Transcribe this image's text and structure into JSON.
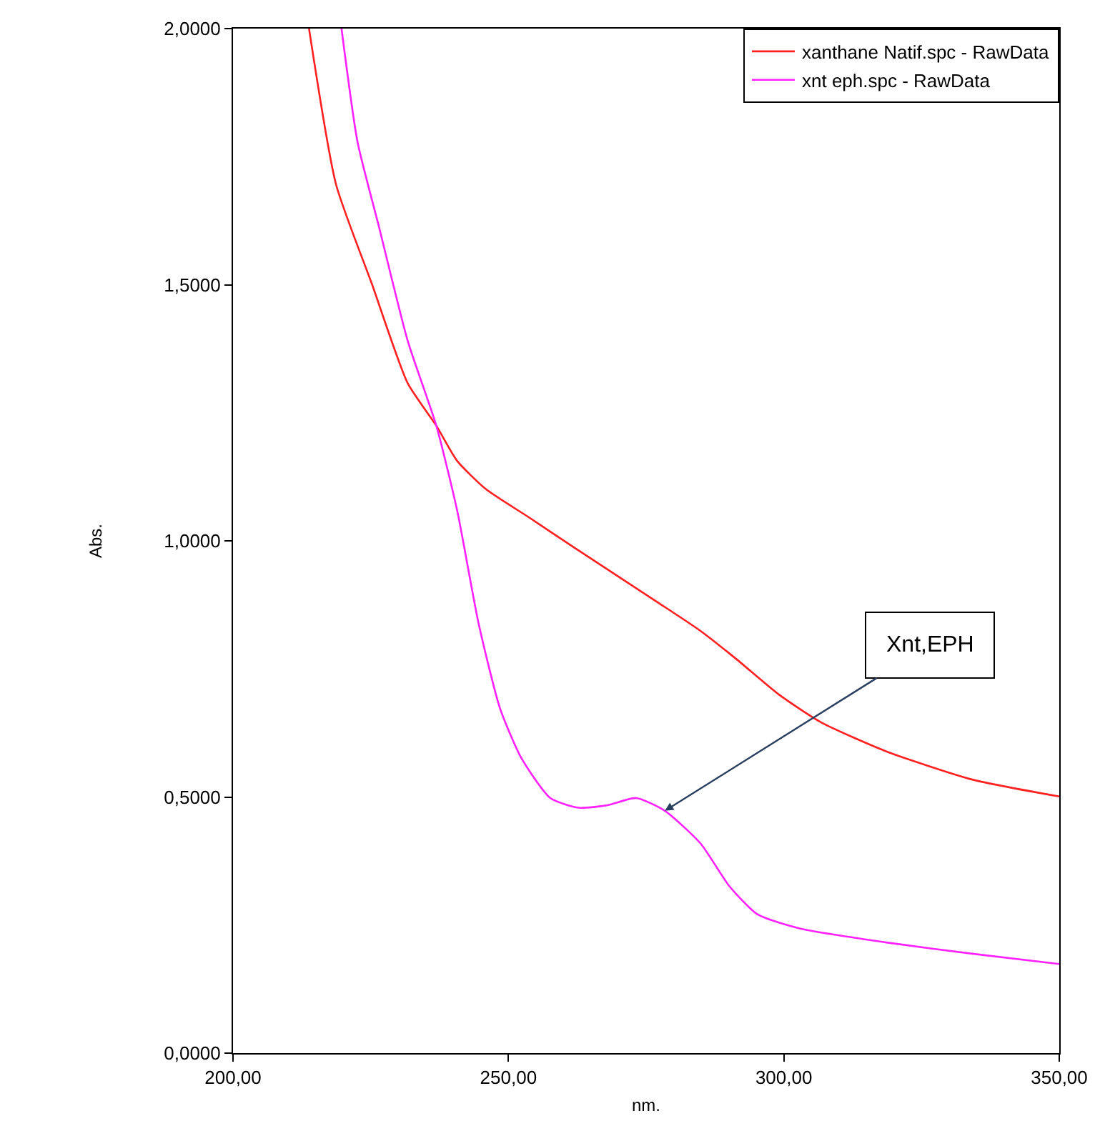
{
  "chart_data": {
    "type": "line",
    "xlabel": "nm.",
    "ylabel": "Abs.",
    "xlim": [
      200,
      350
    ],
    "ylim": [
      0,
      2
    ],
    "xticks": [
      {
        "value": 200,
        "label": "200,00"
      },
      {
        "value": 250,
        "label": "250,00"
      },
      {
        "value": 300,
        "label": "300,00"
      },
      {
        "value": 350,
        "label": "350,00"
      }
    ],
    "yticks": [
      {
        "value": 0,
        "label": "0,0000"
      },
      {
        "value": 0.5,
        "label": "0,5000"
      },
      {
        "value": 1,
        "label": "1,0000"
      },
      {
        "value": 1.5,
        "label": "1,5000"
      },
      {
        "value": 2,
        "label": "2,0000"
      }
    ],
    "legend": "top right",
    "marker": "none",
    "line_style": "solid",
    "series": [
      {
        "name": "xanthane Natif.spc - RawData",
        "color": "#ff2020",
        "x": [
          213.8,
          218.7,
          225.2,
          231.7,
          236.9,
          240.7,
          245.9,
          253.7,
          261.5,
          269.3,
          277.1,
          284.9,
          291.4,
          299.1,
          306.9,
          318.6,
          334.2,
          350
        ],
        "values": [
          2.0,
          1.696,
          1.502,
          1.308,
          1.225,
          1.156,
          1.101,
          1.046,
          0.99,
          0.935,
          0.88,
          0.824,
          0.769,
          0.7,
          0.645,
          0.589,
          0.534,
          0.501
        ]
      },
      {
        "name": "xnt eph.spc - RawData",
        "color": "#ff20ff",
        "x": [
          219.7,
          222.6,
          226.5,
          231.7,
          236.9,
          240.7,
          244.6,
          248.5,
          252.4,
          257.6,
          262.8,
          268.0,
          273.2,
          278.4,
          284.9,
          290.1,
          295.2,
          303.0,
          318.6,
          334.2,
          350
        ],
        "values": [
          2.0,
          1.779,
          1.613,
          1.391,
          1.225,
          1.059,
          0.838,
          0.672,
          0.575,
          0.498,
          0.479,
          0.484,
          0.498,
          0.473,
          0.409,
          0.326,
          0.271,
          0.243,
          0.216,
          0.194,
          0.174
        ]
      }
    ],
    "annotations": [
      {
        "text": "Xnt,EPH",
        "x": 278.4,
        "y": 0.473
      }
    ]
  }
}
